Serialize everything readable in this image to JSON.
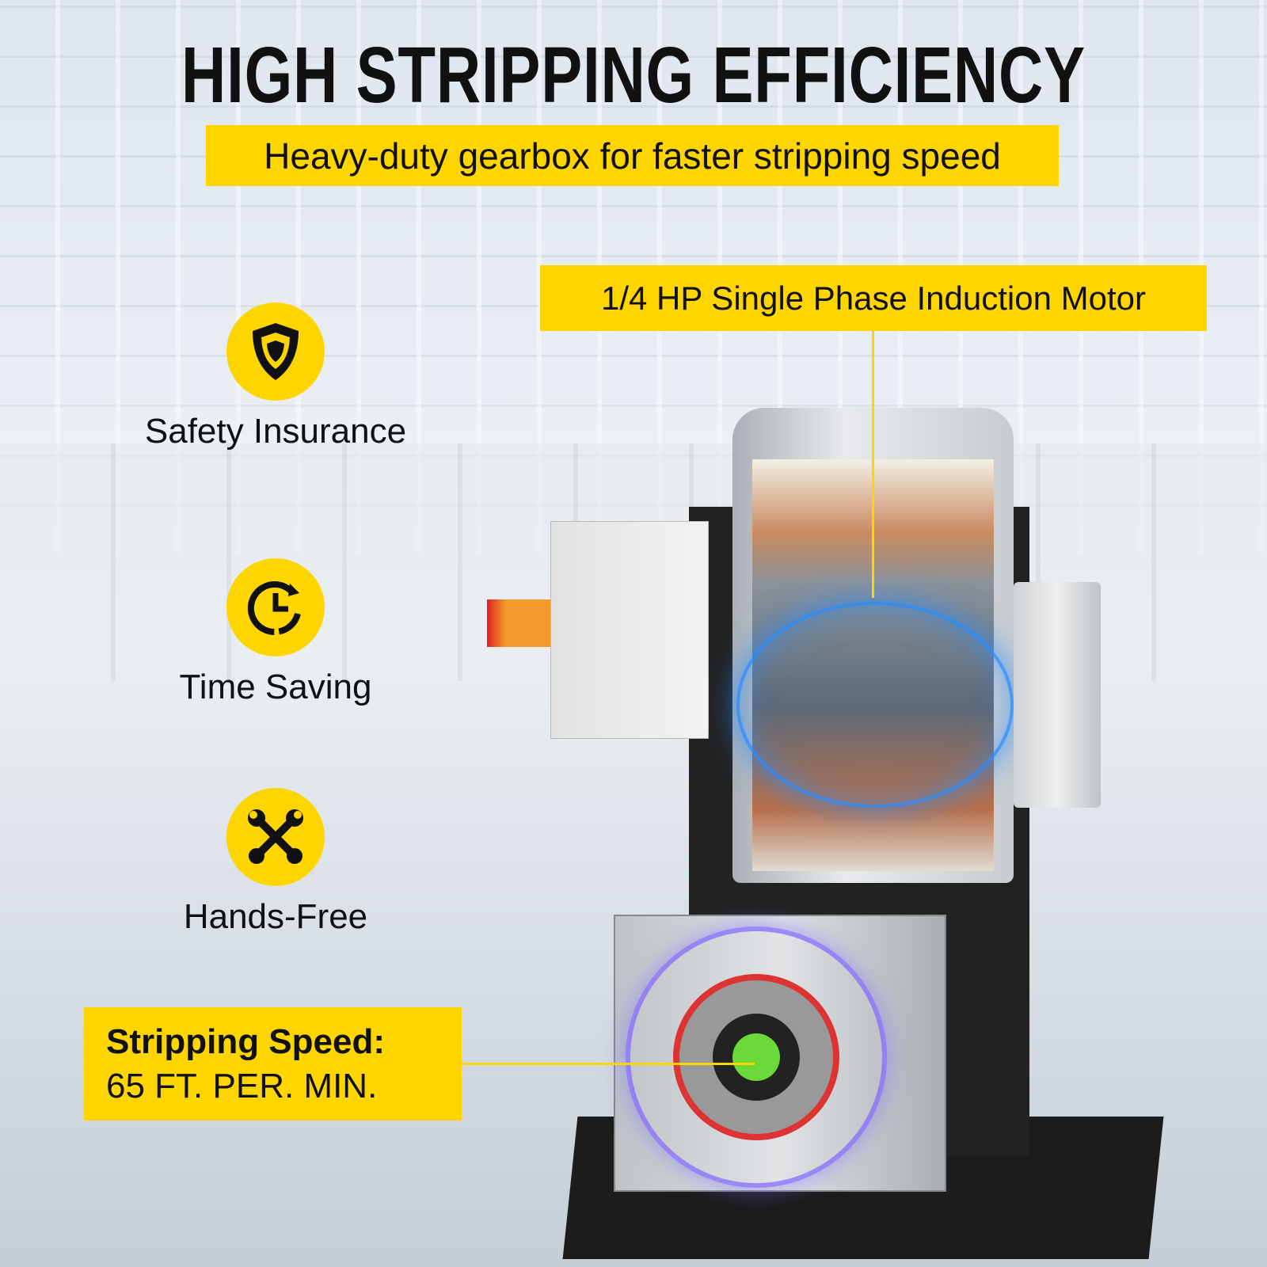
{
  "headline": "HIGH STRIPPING EFFICIENCY",
  "subheadline": "Heavy-duty gearbox for faster stripping speed",
  "callouts": {
    "motor": "1/4 HP Single Phase Induction Motor",
    "speed_title": "Stripping Speed:",
    "speed_value": "65 FT. PER. MIN."
  },
  "features": [
    {
      "label": "Safety Insurance",
      "icon": "shield-icon"
    },
    {
      "label": "Time Saving",
      "icon": "clock-icon"
    },
    {
      "label": "Hands-Free",
      "icon": "tools-icon"
    }
  ],
  "colors": {
    "accent": "#ffd500",
    "text": "#111111"
  }
}
